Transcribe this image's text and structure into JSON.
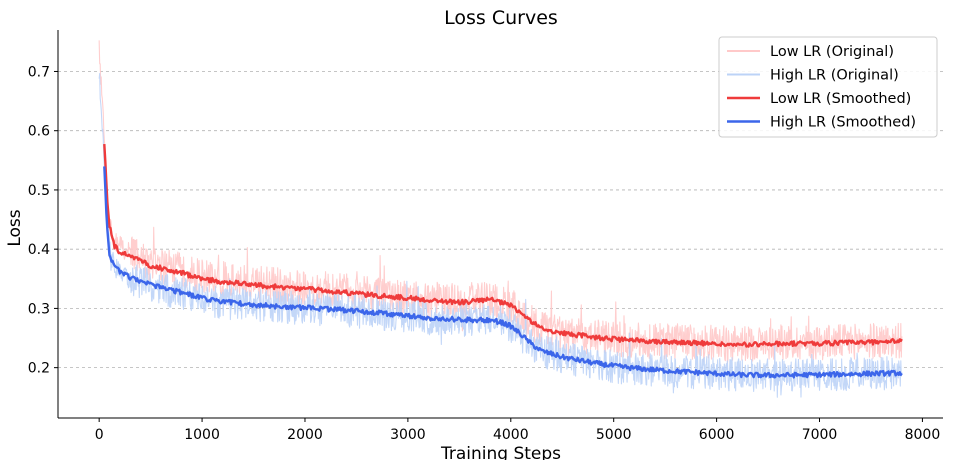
{
  "chart_data": {
    "type": "line",
    "title": "Loss Curves",
    "xlabel": "Training Steps",
    "ylabel": "Loss",
    "xlim": [
      -400,
      8200
    ],
    "ylim": [
      0.115,
      0.77
    ],
    "xticks": [
      0,
      1000,
      2000,
      3000,
      4000,
      5000,
      6000,
      7000,
      8000
    ],
    "yticks": [
      0.2,
      0.3,
      0.4,
      0.5,
      0.6,
      0.7
    ],
    "grid": "horizontal-dashed",
    "legend_position": "top-right",
    "series": [
      {
        "name": "Low LR (Original)",
        "color": "#ffc9c9",
        "style": "raw",
        "x": [
          0,
          25,
          50,
          75,
          100,
          150,
          200,
          300,
          400,
          500,
          600,
          800,
          1000,
          1200,
          1500,
          1800,
          2000,
          2200,
          2500,
          2800,
          3000,
          3200,
          3500,
          3800,
          3900,
          4000,
          4100,
          4200,
          4300,
          4500,
          4800,
          5000,
          5200,
          5500,
          6000,
          6200,
          6500,
          7000,
          7500,
          7800
        ],
        "values": [
          0.74,
          0.66,
          0.58,
          0.5,
          0.44,
          0.415,
          0.405,
          0.395,
          0.385,
          0.375,
          0.37,
          0.365,
          0.355,
          0.348,
          0.342,
          0.338,
          0.335,
          0.332,
          0.327,
          0.322,
          0.318,
          0.315,
          0.313,
          0.315,
          0.312,
          0.305,
          0.29,
          0.275,
          0.265,
          0.258,
          0.252,
          0.248,
          0.246,
          0.245,
          0.242,
          0.24,
          0.242,
          0.243,
          0.245,
          0.246
        ],
        "noise": 0.03
      },
      {
        "name": "High LR (Original)",
        "color": "#bcd3f7",
        "style": "raw",
        "x": [
          0,
          25,
          50,
          75,
          100,
          150,
          200,
          300,
          400,
          500,
          600,
          800,
          1000,
          1200,
          1500,
          1800,
          2000,
          2200,
          2500,
          2800,
          3000,
          3200,
          3500,
          3800,
          3900,
          4000,
          4100,
          4200,
          4300,
          4500,
          4800,
          5000,
          5200,
          5500,
          6000,
          6200,
          6500,
          7000,
          7500,
          7800
        ],
        "values": [
          0.7,
          0.62,
          0.54,
          0.46,
          0.4,
          0.37,
          0.36,
          0.35,
          0.345,
          0.338,
          0.332,
          0.325,
          0.315,
          0.31,
          0.305,
          0.302,
          0.3,
          0.298,
          0.295,
          0.29,
          0.285,
          0.283,
          0.28,
          0.28,
          0.278,
          0.27,
          0.255,
          0.24,
          0.228,
          0.218,
          0.208,
          0.202,
          0.198,
          0.195,
          0.19,
          0.188,
          0.187,
          0.188,
          0.19,
          0.191
        ],
        "noise": 0.028
      },
      {
        "name": "Low LR (Smoothed)",
        "color": "#ef3b3b",
        "style": "smooth",
        "x": [
          50,
          60,
          75,
          100,
          150,
          200,
          300,
          400,
          500,
          600,
          800,
          1000,
          1200,
          1500,
          1800,
          2000,
          2200,
          2500,
          2800,
          3000,
          3200,
          3500,
          3800,
          3900,
          4000,
          4100,
          4200,
          4300,
          4500,
          4800,
          5000,
          5200,
          5500,
          6000,
          6200,
          6500,
          7000,
          7500,
          7800
        ],
        "values": [
          0.578,
          0.55,
          0.49,
          0.44,
          0.405,
          0.395,
          0.39,
          0.38,
          0.372,
          0.368,
          0.36,
          0.35,
          0.345,
          0.34,
          0.335,
          0.333,
          0.33,
          0.325,
          0.32,
          0.318,
          0.314,
          0.31,
          0.315,
          0.31,
          0.305,
          0.292,
          0.278,
          0.266,
          0.258,
          0.252,
          0.248,
          0.246,
          0.244,
          0.24,
          0.238,
          0.24,
          0.241,
          0.243,
          0.245
        ],
        "noise": 0.004
      },
      {
        "name": "High LR (Smoothed)",
        "color": "#3c66ea",
        "style": "smooth",
        "x": [
          50,
          60,
          75,
          100,
          150,
          200,
          300,
          400,
          500,
          600,
          800,
          1000,
          1200,
          1500,
          1800,
          2000,
          2200,
          2500,
          2800,
          3000,
          3200,
          3500,
          3800,
          3900,
          4000,
          4100,
          4200,
          4300,
          4500,
          4800,
          5000,
          5200,
          5500,
          6000,
          6200,
          6500,
          7000,
          7500,
          7800
        ],
        "values": [
          0.538,
          0.5,
          0.44,
          0.39,
          0.37,
          0.362,
          0.352,
          0.345,
          0.34,
          0.335,
          0.327,
          0.317,
          0.312,
          0.306,
          0.303,
          0.301,
          0.299,
          0.296,
          0.291,
          0.287,
          0.284,
          0.281,
          0.28,
          0.277,
          0.27,
          0.256,
          0.24,
          0.228,
          0.218,
          0.208,
          0.203,
          0.199,
          0.195,
          0.19,
          0.188,
          0.187,
          0.188,
          0.19,
          0.191
        ],
        "noise": 0.004
      }
    ]
  }
}
